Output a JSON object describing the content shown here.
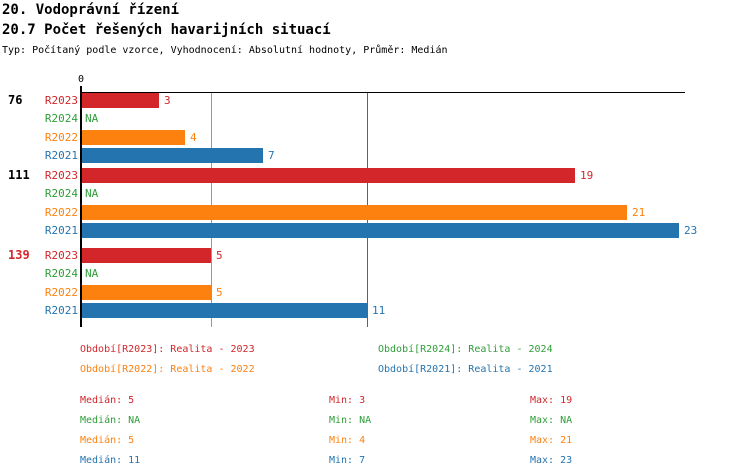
{
  "header": {
    "title1": "20. Vodoprávní řízení",
    "title2": "20.7 Počet řešených havarijních situací",
    "meta": "Typ: Počítaný podle vzorce, Vyhodnocení: Absolutní hodnoty, Průměr: Medián"
  },
  "colors": {
    "r2023": "#d2262b",
    "r2024": "#2e9e38",
    "r2022": "#fd810e",
    "r2021": "#2474b0",
    "axis": "#000000",
    "highlight": "#d2262b",
    "background": "#ffffff"
  },
  "chart_data": {
    "type": "bar",
    "orientation": "horizontal",
    "title": "20.7 Počet řešených havarijních situací",
    "categories": [
      "76",
      "111",
      "139"
    ],
    "series": [
      {
        "name": "R2023",
        "color": "#d2262b",
        "values": [
          3,
          19,
          5
        ]
      },
      {
        "name": "R2024",
        "color": "#2e9e38",
        "values": [
          null,
          null,
          null
        ]
      },
      {
        "name": "R2022",
        "color": "#fd810e",
        "values": [
          4,
          21,
          5
        ]
      },
      {
        "name": "R2021",
        "color": "#2474b0",
        "values": [
          7,
          23,
          11
        ]
      }
    ],
    "na_text": "NA",
    "xlim": [
      0,
      23.2
    ],
    "axis_tick_labels": [
      "0"
    ],
    "grid": "median-lines-only",
    "median_lines": [
      {
        "series": "R2022",
        "value": 5,
        "color": "#fd810e"
      },
      {
        "series": "R2021",
        "value": 11,
        "color": "#2474b0"
      }
    ],
    "highlighted_category": "139",
    "legend_position": "bottom",
    "stats": {
      "median": [
        5,
        null,
        5,
        11
      ],
      "min": [
        3,
        null,
        4,
        7
      ],
      "max": [
        19,
        null,
        21,
        23
      ]
    }
  },
  "legend": {
    "items": [
      {
        "label": "Období[R2023]: Realita - 2023",
        "color": "#d2262b"
      },
      {
        "label": "Období[R2024]: Realita - 2024",
        "color": "#2e9e38"
      },
      {
        "label": "Období[R2022]: Realita - 2022",
        "color": "#fd810e"
      },
      {
        "label": "Období[R2021]: Realita - 2021",
        "color": "#2474b0"
      }
    ]
  },
  "stats": {
    "rows": [
      {
        "series": "R2023",
        "color": "#d2262b",
        "median": "Medián: 5",
        "min": "Min: 3",
        "max": "Max: 19"
      },
      {
        "series": "R2024",
        "color": "#2e9e38",
        "median": "Medián: NA",
        "min": "Min: NA",
        "max": "Max: NA"
      },
      {
        "series": "R2022",
        "color": "#fd810e",
        "median": "Medián: 5",
        "min": "Min: 4",
        "max": "Max: 21"
      },
      {
        "series": "R2021",
        "color": "#2474b0",
        "median": "Medián: 11",
        "min": "Min: 7",
        "max": "Max: 23"
      }
    ]
  }
}
